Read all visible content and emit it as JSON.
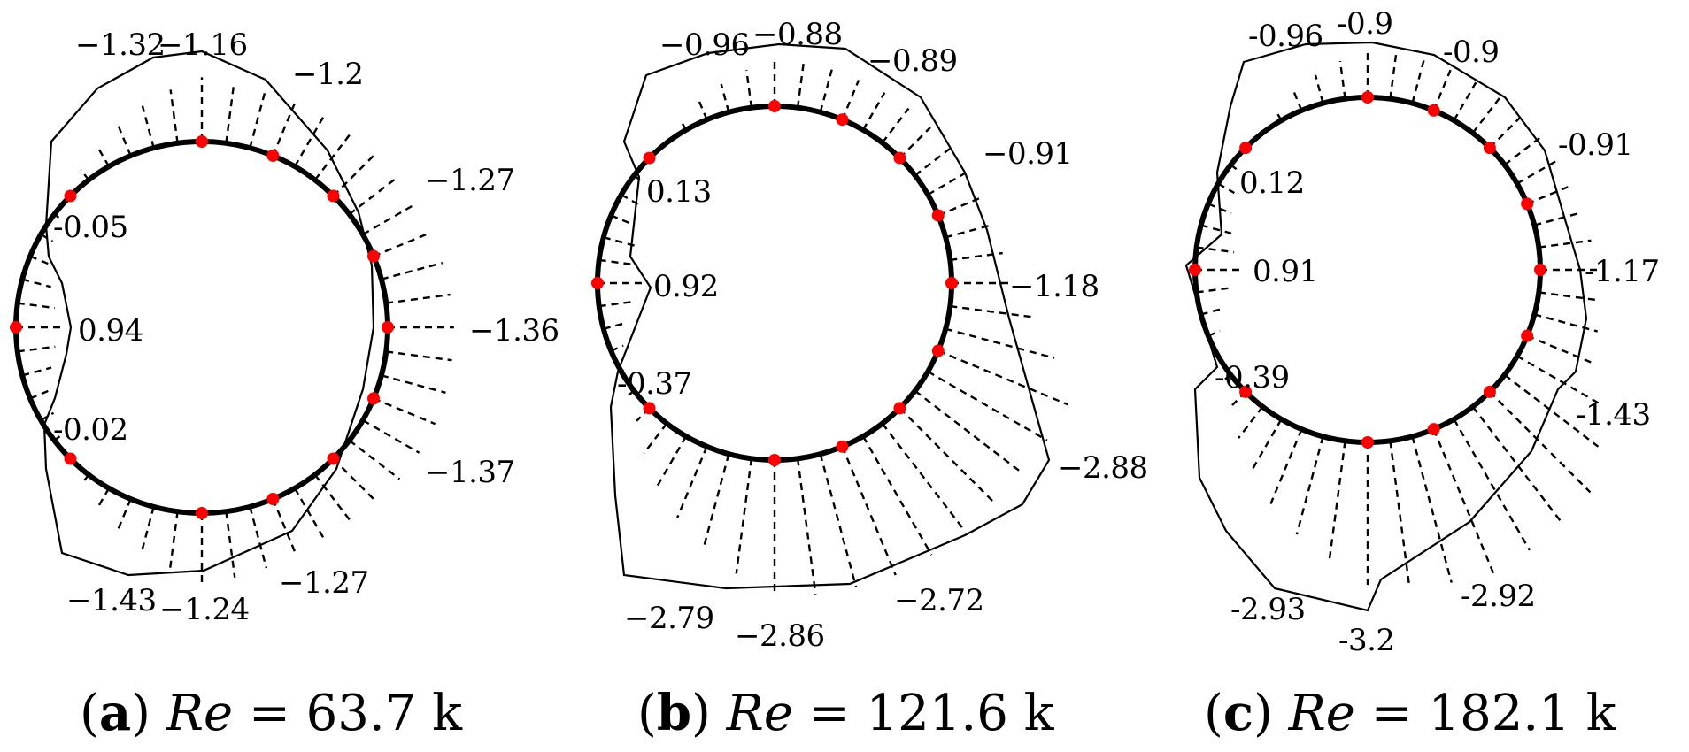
{
  "colors": {
    "tap": "#ff0000",
    "line": "#000000"
  },
  "panels": [
    {
      "id": "a",
      "caption": {
        "letter": "a",
        "symbol": "Re",
        "equals": "= 63.7 k"
      },
      "taps": [
        {
          "angle_deg": 0,
          "value": 0.94,
          "label": "0.94"
        },
        {
          "angle_deg": 45,
          "value": -0.05,
          "label": "-0.05"
        },
        {
          "angle_deg": 90,
          "value": -1.32,
          "label": "−1.32"
        },
        {
          "angle_deg": 112.5,
          "value": -1.16,
          "label": "−1.16"
        },
        {
          "angle_deg": 135,
          "value": -1.2,
          "label": "−1.2"
        },
        {
          "angle_deg": 157.5,
          "value": -1.27,
          "label": "−1.27"
        },
        {
          "angle_deg": 180,
          "value": -1.36,
          "label": "−1.36"
        },
        {
          "angle_deg": 202.5,
          "value": -1.37,
          "label": "−1.37"
        },
        {
          "angle_deg": 225,
          "value": -1.27,
          "label": "−1.27"
        },
        {
          "angle_deg": 247.5,
          "value": -1.24,
          "label": "−1.24"
        },
        {
          "angle_deg": 270,
          "value": -1.43,
          "label": "−1.43"
        },
        {
          "angle_deg": 315,
          "value": -0.02,
          "label": "-0.02"
        }
      ]
    },
    {
      "id": "b",
      "caption": {
        "letter": "b",
        "symbol": "Re",
        "equals": "= 121.6 k"
      },
      "taps": [
        {
          "angle_deg": 0,
          "value": 0.92,
          "label": "0.92"
        },
        {
          "angle_deg": 45,
          "value": 0.13,
          "label": "0.13"
        },
        {
          "angle_deg": 90,
          "value": -0.96,
          "label": "−0.96"
        },
        {
          "angle_deg": 112.5,
          "value": -0.88,
          "label": "−0.88"
        },
        {
          "angle_deg": 135,
          "value": -0.89,
          "label": "−0.89"
        },
        {
          "angle_deg": 157.5,
          "value": -0.91,
          "label": "−0.91"
        },
        {
          "angle_deg": 180,
          "value": -1.18,
          "label": "−1.18"
        },
        {
          "angle_deg": 202.5,
          "value": -2.88,
          "label": "−2.88"
        },
        {
          "angle_deg": 225,
          "value": -2.72,
          "label": "−2.72"
        },
        {
          "angle_deg": 247.5,
          "value": -2.86,
          "label": "−2.86"
        },
        {
          "angle_deg": 270,
          "value": -2.79,
          "label": "−2.79"
        },
        {
          "angle_deg": 315,
          "value": -0.37,
          "label": "-0.37"
        }
      ]
    },
    {
      "id": "c",
      "caption": {
        "letter": "c",
        "symbol": "Re",
        "equals": "= 182.1 k"
      },
      "taps": [
        {
          "angle_deg": 0,
          "value": 0.91,
          "label": "0.91"
        },
        {
          "angle_deg": 45,
          "value": 0.12,
          "label": "0.12"
        },
        {
          "angle_deg": 90,
          "value": -0.96,
          "label": "-0.96"
        },
        {
          "angle_deg": 112.5,
          "value": -0.9,
          "label": "-0.9"
        },
        {
          "angle_deg": 135,
          "value": -0.9,
          "label": "-0.9"
        },
        {
          "angle_deg": 157.5,
          "value": -0.91,
          "label": "-0.91"
        },
        {
          "angle_deg": 180,
          "value": -1.17,
          "label": "-1.17"
        },
        {
          "angle_deg": 202.5,
          "value": -1.43,
          "label": "-1.43"
        },
        {
          "angle_deg": 225,
          "value": -2.92,
          "label": "-2.92"
        },
        {
          "angle_deg": 247.5,
          "value": -3.2,
          "label": "-3.2"
        },
        {
          "angle_deg": 270,
          "value": -2.93,
          "label": "-2.93"
        },
        {
          "angle_deg": 315,
          "value": -0.39,
          "label": "-0.39"
        }
      ]
    }
  ]
}
